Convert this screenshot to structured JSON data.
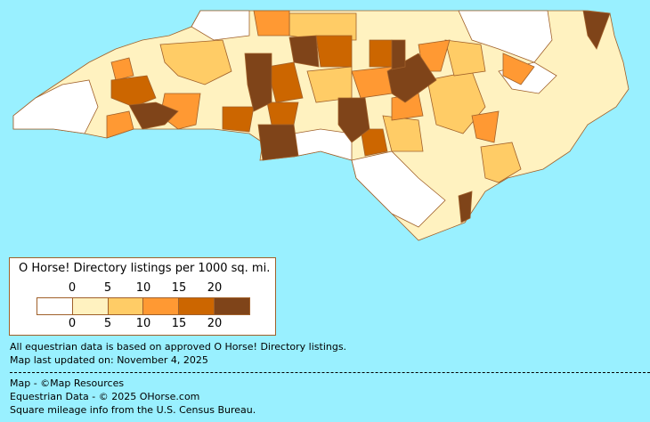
{
  "legend": {
    "title": "O Horse! Directory listings per 1000 sq. mi.",
    "top_ticks": [
      "0",
      "5",
      "10",
      "15",
      "20"
    ],
    "bottom_ticks": [
      "0",
      "5",
      "10",
      "15",
      "20"
    ],
    "bins": [
      {
        "range": "0",
        "color": "#FFFFFF"
      },
      {
        "range": "0-5",
        "color": "#FFF2C0"
      },
      {
        "range": "5-10",
        "color": "#FFCC66"
      },
      {
        "range": "10-15",
        "color": "#FF9933"
      },
      {
        "range": "15-20",
        "color": "#CC6600"
      },
      {
        "range": "20+",
        "color": "#7F4419"
      }
    ]
  },
  "notes": {
    "data_basis": "All equestrian data is based on approved O Horse! Directory listings.",
    "updated": "Map last updated on: November 4, 2025"
  },
  "credits": {
    "map": "Map - ©Map Resources",
    "data": "Equestrian Data - © 2025 OHorse.com",
    "census": "Square mileage info from the U.S. Census Bureau."
  },
  "colors": {
    "background": "#99F0FF",
    "border": "#A0602A"
  }
}
